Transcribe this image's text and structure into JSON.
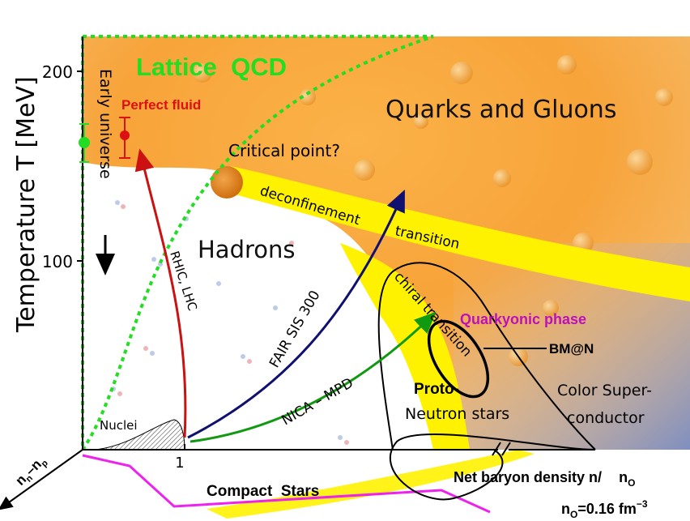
{
  "axes": {
    "y_label": "Temperature T [MeV]",
    "y_ticks": [
      "200",
      "100"
    ],
    "x_ticks": [
      "1"
    ],
    "x_label_main": "Net baryon density n/",
    "x_label_unit": "n",
    "x_label_sub": "O",
    "isospin_axis_label": "n",
    "isospin_sub_n": "n",
    "isospin_minus": "–n",
    "isospin_sub_p": "p",
    "n0_def_prefix": "n",
    "n0_def_sub": "O",
    "n0_def_value": "=0.16 fm",
    "n0_def_exp": "−3"
  },
  "regions": {
    "lattice": "Lattice  QCD",
    "qgp": "Quarks and Gluons",
    "hadrons": "Hadrons",
    "quarkyonic": "Quarkyonic phase",
    "color_sc_1": "Color Super-",
    "color_sc_2": "conductor",
    "proto": "Proto-",
    "neutron_stars": "Neutron stars",
    "nuclei": "Nuclei",
    "compact_stars": "Compact  Stars"
  },
  "labels": {
    "perfect_fluid": "Perfect fluid",
    "early_universe": "Early universe",
    "critical_point": "Critical point?",
    "deconfinement": "deconfinement",
    "transition": "transition",
    "chiral_transition": "chiral transition",
    "bmn": "BM@N",
    "rhic": "RHIC, LHC",
    "fair": "FAIR SIS 300",
    "nica": "NICA – MPD"
  },
  "colors": {
    "lattice_green": "#22dd22",
    "perfect_fluid_red": "#dd1111",
    "quarkyonic_magenta": "#bb11bb",
    "compact_stars_magenta": "#ee22ee",
    "rhic_arrow": "#cc1111",
    "fair_arrow": "#101070",
    "nica_arrow": "#119911",
    "critical_point": "#e0851a",
    "transition_band": "#fff200"
  }
}
